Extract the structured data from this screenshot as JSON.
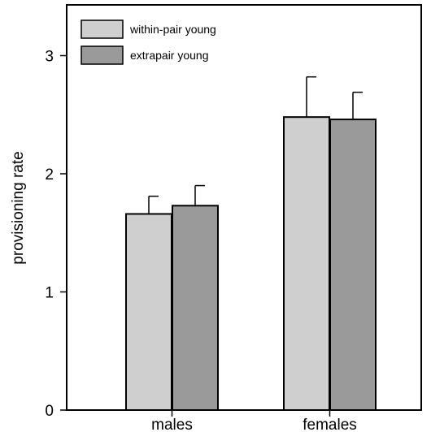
{
  "chart_data": {
    "type": "bar",
    "title": "",
    "xlabel": "",
    "ylabel": "provisioning rate",
    "ylim": [
      0,
      3.4
    ],
    "yticks": [
      0,
      1,
      2,
      3
    ],
    "categories": [
      "males",
      "females"
    ],
    "series": [
      {
        "name": "within-pair young",
        "color": "#cfcfcf",
        "values": [
          1.66,
          2.48
        ],
        "errors": [
          0.15,
          0.34
        ]
      },
      {
        "name": "extrapair young",
        "color": "#9a9a9a",
        "values": [
          1.73,
          2.46
        ],
        "errors": [
          0.17,
          0.23
        ]
      }
    ],
    "legend_position": "top-left",
    "grid": false
  }
}
